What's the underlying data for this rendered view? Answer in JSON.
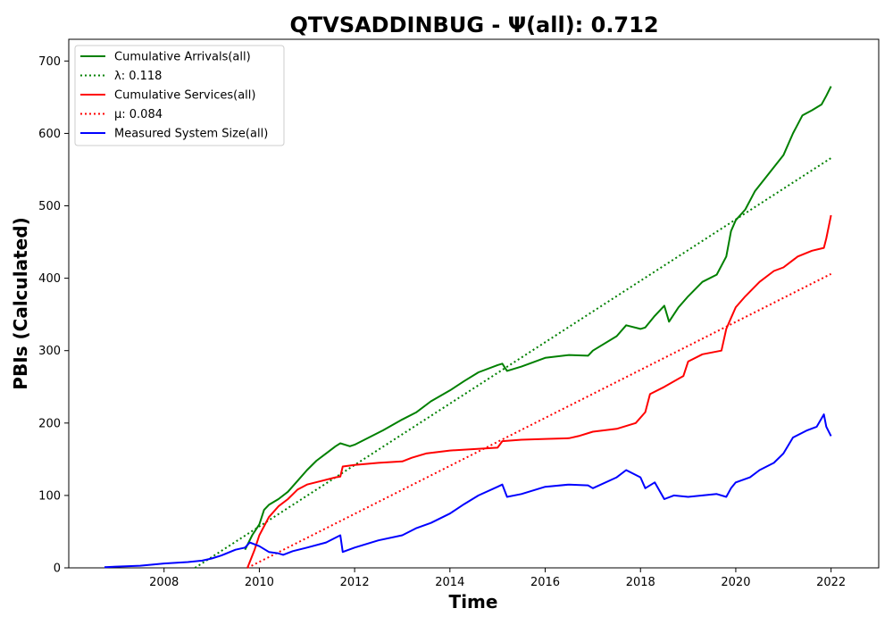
{
  "chart_data": {
    "type": "line",
    "title": "QTVSADDINBUG -  Ψ(all): 0.712",
    "xlabel": "Time",
    "ylabel": "PBIs (Calculated)",
    "xlim": [
      2006.0,
      2023.0
    ],
    "ylim": [
      0,
      730
    ],
    "x_ticks": [
      2008,
      2010,
      2012,
      2014,
      2016,
      2018,
      2020,
      2022
    ],
    "y_ticks": [
      0,
      100,
      200,
      300,
      400,
      500,
      600,
      700
    ],
    "grid": false,
    "legend_position": "top-left",
    "series": [
      {
        "name": "Cumulative Arrivals(all)",
        "style": "solid",
        "color": "#008000",
        "x": [
          2009.7,
          2009.85,
          2010.0,
          2010.1,
          2010.2,
          2010.4,
          2010.6,
          2010.8,
          2011.0,
          2011.2,
          2011.4,
          2011.6,
          2011.7,
          2011.9,
          2012.0,
          2012.3,
          2012.6,
          2013.0,
          2013.3,
          2013.6,
          2014.0,
          2014.3,
          2014.6,
          2015.0,
          2015.1,
          2015.2,
          2015.5,
          2016.0,
          2016.5,
          2016.9,
          2017.0,
          2017.5,
          2017.7,
          2018.0,
          2018.1,
          2018.3,
          2018.5,
          2018.6,
          2018.8,
          2019.0,
          2019.3,
          2019.6,
          2019.8,
          2019.9,
          2020.0,
          2020.2,
          2020.4,
          2020.7,
          2021.0,
          2021.2,
          2021.4,
          2021.6,
          2021.8,
          2021.9,
          2022.0
        ],
        "y": [
          25,
          45,
          60,
          80,
          87,
          95,
          105,
          120,
          135,
          148,
          158,
          168,
          172,
          168,
          170,
          180,
          190,
          205,
          215,
          230,
          245,
          258,
          270,
          280,
          282,
          272,
          278,
          290,
          294,
          293,
          300,
          320,
          335,
          330,
          332,
          348,
          362,
          340,
          360,
          375,
          395,
          405,
          430,
          465,
          480,
          495,
          520,
          545,
          570,
          600,
          625,
          632,
          640,
          652,
          665
        ]
      },
      {
        "name": "λ: 0.118",
        "style": "dotted",
        "color": "#008000",
        "x": [
          2008.65,
          2022.0
        ],
        "y": [
          0,
          566
        ]
      },
      {
        "name": "Cumulative Services(all)",
        "style": "solid",
        "color": "#ff0000",
        "x": [
          2009.75,
          2009.9,
          2010.0,
          2010.2,
          2010.4,
          2010.6,
          2010.8,
          2011.0,
          2011.3,
          2011.6,
          2011.7,
          2011.75,
          2012.0,
          2012.5,
          2013.0,
          2013.2,
          2013.5,
          2014.0,
          2014.5,
          2015.0,
          2015.1,
          2015.5,
          2016.0,
          2016.5,
          2016.7,
          2017.0,
          2017.5,
          2017.9,
          2018.1,
          2018.2,
          2018.5,
          2018.9,
          2019.0,
          2019.3,
          2019.7,
          2019.8,
          2019.9,
          2020.0,
          2020.2,
          2020.5,
          2020.8,
          2021.0,
          2021.3,
          2021.6,
          2021.85,
          2021.9,
          2022.0
        ],
        "y": [
          0,
          25,
          45,
          70,
          85,
          95,
          108,
          115,
          120,
          125,
          126,
          140,
          142,
          145,
          147,
          152,
          158,
          162,
          164,
          166,
          175,
          177,
          178,
          179,
          182,
          188,
          192,
          200,
          215,
          240,
          250,
          265,
          285,
          295,
          300,
          330,
          345,
          360,
          375,
          395,
          410,
          415,
          430,
          438,
          442,
          455,
          487
        ]
      },
      {
        "name": "μ: 0.084",
        "style": "dotted",
        "color": "#ff0000",
        "x": [
          2009.75,
          2022.0
        ],
        "y": [
          0,
          406
        ]
      },
      {
        "name": "Measured System Size(all)",
        "style": "solid",
        "color": "#0000ff",
        "x": [
          2006.75,
          2007.5,
          2008.0,
          2008.5,
          2008.8,
          2009.0,
          2009.2,
          2009.5,
          2009.7,
          2009.8,
          2010.0,
          2010.2,
          2010.4,
          2010.5,
          2010.7,
          2011.0,
          2011.4,
          2011.7,
          2011.75,
          2012.0,
          2012.5,
          2013.0,
          2013.3,
          2013.6,
          2014.0,
          2014.3,
          2014.6,
          2015.0,
          2015.1,
          2015.2,
          2015.5,
          2016.0,
          2016.5,
          2016.9,
          2017.0,
          2017.5,
          2017.7,
          2018.0,
          2018.1,
          2018.3,
          2018.5,
          2018.7,
          2019.0,
          2019.3,
          2019.6,
          2019.8,
          2019.9,
          2020.0,
          2020.3,
          2020.5,
          2020.8,
          2021.0,
          2021.2,
          2021.5,
          2021.7,
          2021.85,
          2021.9,
          2022.0
        ],
        "y": [
          1,
          3,
          6,
          8,
          10,
          13,
          17,
          25,
          28,
          35,
          30,
          22,
          20,
          18,
          23,
          28,
          35,
          45,
          22,
          28,
          38,
          45,
          55,
          62,
          75,
          88,
          100,
          112,
          115,
          98,
          102,
          112,
          115,
          114,
          110,
          125,
          135,
          125,
          110,
          118,
          95,
          100,
          98,
          100,
          102,
          98,
          110,
          118,
          125,
          135,
          145,
          158,
          180,
          190,
          195,
          212,
          195,
          182
        ]
      }
    ]
  }
}
